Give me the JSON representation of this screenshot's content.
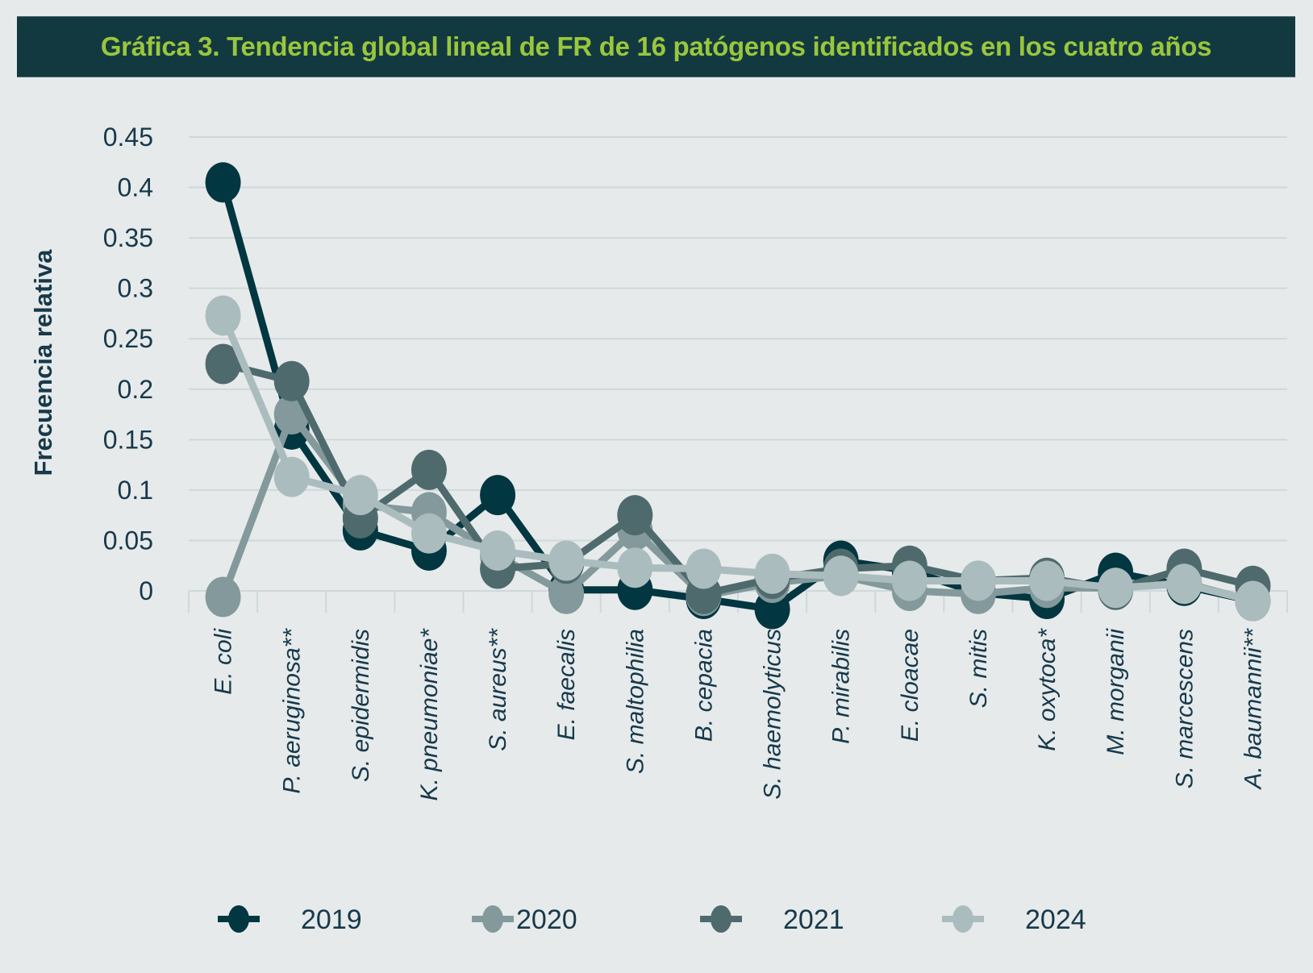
{
  "chart_data": {
    "type": "line",
    "title": "Gráfica 3. Tendencia global lineal de FR de 16 patógenos identificados en los cuatro años",
    "xlabel": "",
    "ylabel": "Frecuencia relativa",
    "ylim": [
      0,
      0.45
    ],
    "yticks": [
      "0.45",
      "0.4",
      "0.35",
      "0.3",
      "0.25",
      "0.2",
      "0.15",
      "0.1",
      "0.05",
      "0"
    ],
    "ytick_values": [
      0.45,
      0.4,
      0.35,
      0.3,
      0.25,
      0.2,
      0.15,
      0.1,
      0.05,
      0
    ],
    "grid": true,
    "legend_position": "bottom",
    "categories": [
      "E. coli",
      "P. aeruginosa**",
      "S. epidermidis",
      "K. pneumoniae*",
      "S. aureus**",
      "E. faecalis",
      "S. maltophilia",
      "B. cepacia",
      "S. haemolyticus",
      "P. mirabilis",
      "E. cloacae",
      "S. mitis",
      "K. oxytoca*",
      "M. morganii",
      "S. marcescens",
      "A. baumannii**"
    ],
    "series": [
      {
        "name": "2019",
        "color": "#023640",
        "values": [
          0.405,
          0.16,
          0.06,
          0.04,
          0.095,
          0.001,
          0.001,
          -0.008,
          -0.018,
          0.03,
          0.02,
          -0.002,
          -0.008,
          0.018,
          0.005,
          -0.01
        ]
      },
      {
        "name": "2020",
        "color": "#83999b",
        "values": [
          -0.006,
          0.175,
          0.085,
          0.078,
          0.035,
          -0.003,
          0.06,
          -0.005,
          0.008,
          0.015,
          0.0,
          -0.003,
          0.003,
          0.003,
          0.008,
          -0.01
        ]
      },
      {
        "name": "2021",
        "color": "#4f6a6d",
        "values": [
          0.225,
          0.208,
          0.072,
          0.12,
          0.022,
          0.027,
          0.075,
          -0.003,
          0.012,
          0.022,
          0.025,
          0.01,
          0.013,
          0.001,
          0.022,
          0.005
        ]
      },
      {
        "name": "2024",
        "color": "#abbcbe",
        "values": [
          0.273,
          0.113,
          0.095,
          0.057,
          0.04,
          0.03,
          0.023,
          0.022,
          0.017,
          0.015,
          0.01,
          0.01,
          0.01,
          0.003,
          0.007,
          -0.01
        ]
      }
    ]
  }
}
